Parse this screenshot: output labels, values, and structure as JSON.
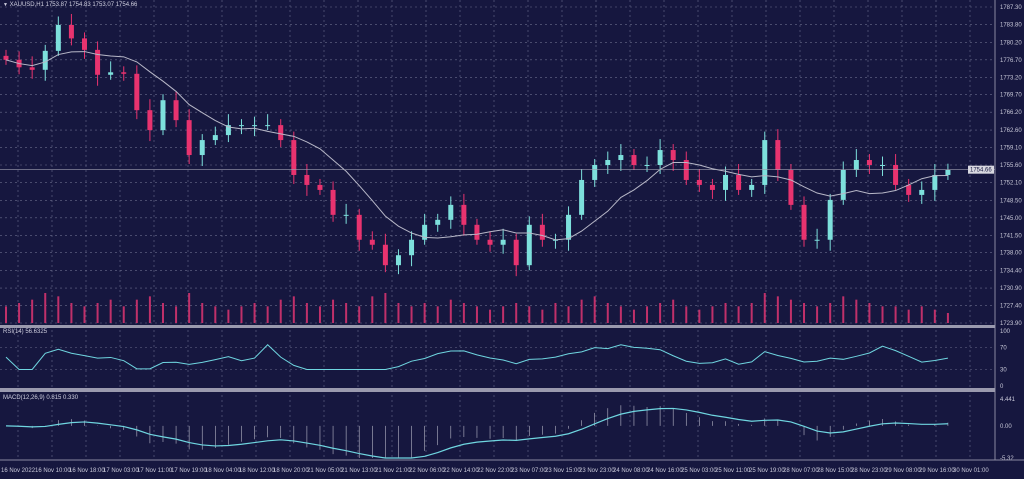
{
  "header": {
    "symbol_icon": "triangle-down-icon",
    "title": "XAUUSD,H1  1753.87 1754.83 1753.07 1754.66"
  },
  "colors": {
    "background": "#16173f",
    "bull": "#7de0dc",
    "bear": "#e8336f",
    "grid": "#6a6c8c",
    "ma": "#b8b8c8",
    "indicator": "#6fd6e0",
    "volume": "#c0306a"
  },
  "chart_data": [
    {
      "type": "candlestick",
      "symbol": "XAUUSD",
      "timeframe": "H1",
      "current_price": "1754.66",
      "ylim": [
        1723.9,
        1787.3
      ],
      "price_ticks": [
        "1787.30",
        "1783.80",
        "1780.20",
        "1776.70",
        "1773.20",
        "1769.70",
        "1766.20",
        "1762.60",
        "1759.10",
        "1755.60",
        "1752.10",
        "1748.50",
        "1745.00",
        "1741.50",
        "1738.00",
        "1734.40",
        "1730.90",
        "1727.40",
        "1723.90"
      ],
      "time_ticks": [
        "16 Nov 2022",
        "16 Nov 10:00",
        "16 Nov 18:00",
        "17 Nov 03:00",
        "17 Nov 11:00",
        "17 Nov 19:00",
        "18 Nov 04:00",
        "18 Nov 12:00",
        "18 Nov 20:00",
        "21 Nov 05:00",
        "21 Nov 13:00",
        "21 Nov 21:00",
        "22 Nov 06:00",
        "22 Nov 14:00",
        "22 Nov 22:00",
        "23 Nov 07:00",
        "23 Nov 15:00",
        "23 Nov 23:00",
        "24 Nov 08:00",
        "24 Nov 16:00",
        "25 Nov 03:00",
        "25 Nov 11:00",
        "25 Nov 19:00",
        "28 Nov 07:00",
        "28 Nov 15:00",
        "28 Nov 23:00",
        "29 Nov 08:00",
        "29 Nov 16:00",
        "30 Nov 01:00"
      ],
      "grid": true,
      "moving_average": true,
      "closes": [
        1776.7,
        1775.2,
        1774.7,
        1778.5,
        1783.7,
        1781.0,
        1778.7,
        1773.7,
        1774.2,
        1773.9,
        1766.6,
        1762.6,
        1768.6,
        1764.6,
        1757.6,
        1760.6,
        1761.6,
        1763.6,
        1763.6,
        1763.6,
        1763.6,
        1760.6,
        1753.6,
        1751.6,
        1750.6,
        1745.6,
        1745.6,
        1740.6,
        1739.6,
        1735.5,
        1737.5,
        1740.6,
        1743.6,
        1744.6,
        1747.6,
        1743.6,
        1740.6,
        1739.6,
        1740.6,
        1735.5,
        1743.6,
        1740.6,
        1740.6,
        1745.6,
        1752.6,
        1755.6,
        1756.6,
        1757.6,
        1755.6,
        1755.6,
        1758.6,
        1756.6,
        1752.6,
        1751.6,
        1750.6,
        1753.6,
        1750.6,
        1751.6,
        1760.6,
        1754.6,
        1747.6,
        1740.6,
        1740.6,
        1748.6,
        1754.6,
        1756.6,
        1755.6,
        1755.6,
        1751.6,
        1749.6,
        1750.6,
        1753.6,
        1754.66
      ],
      "volumes": [
        5,
        6,
        7,
        9,
        8,
        6,
        5,
        6,
        7,
        5,
        7,
        8,
        6,
        5,
        9,
        6,
        5,
        4,
        5,
        6,
        5,
        7,
        8,
        6,
        5,
        7,
        6,
        5,
        8,
        9,
        6,
        5,
        6,
        5,
        7,
        6,
        5,
        4,
        5,
        6,
        5,
        4,
        6,
        5,
        7,
        8,
        6,
        5,
        4,
        5,
        6,
        7,
        5,
        4,
        5,
        6,
        5,
        6,
        9,
        8,
        7,
        6,
        5,
        6,
        8,
        7,
        6,
        5,
        5,
        4,
        5,
        4,
        3
      ]
    },
    {
      "type": "line",
      "name": "RSI(14) 56.6325",
      "yticks": [
        "100",
        "70",
        "30",
        "0"
      ],
      "ylim": [
        0,
        100
      ]
    },
    {
      "type": "bar",
      "name": "MACD(12,26,9) 0.815 0.330",
      "yticks": [
        "4.441",
        "0.00",
        "-5.32"
      ],
      "ylim": [
        -5.32,
        4.441
      ]
    }
  ]
}
